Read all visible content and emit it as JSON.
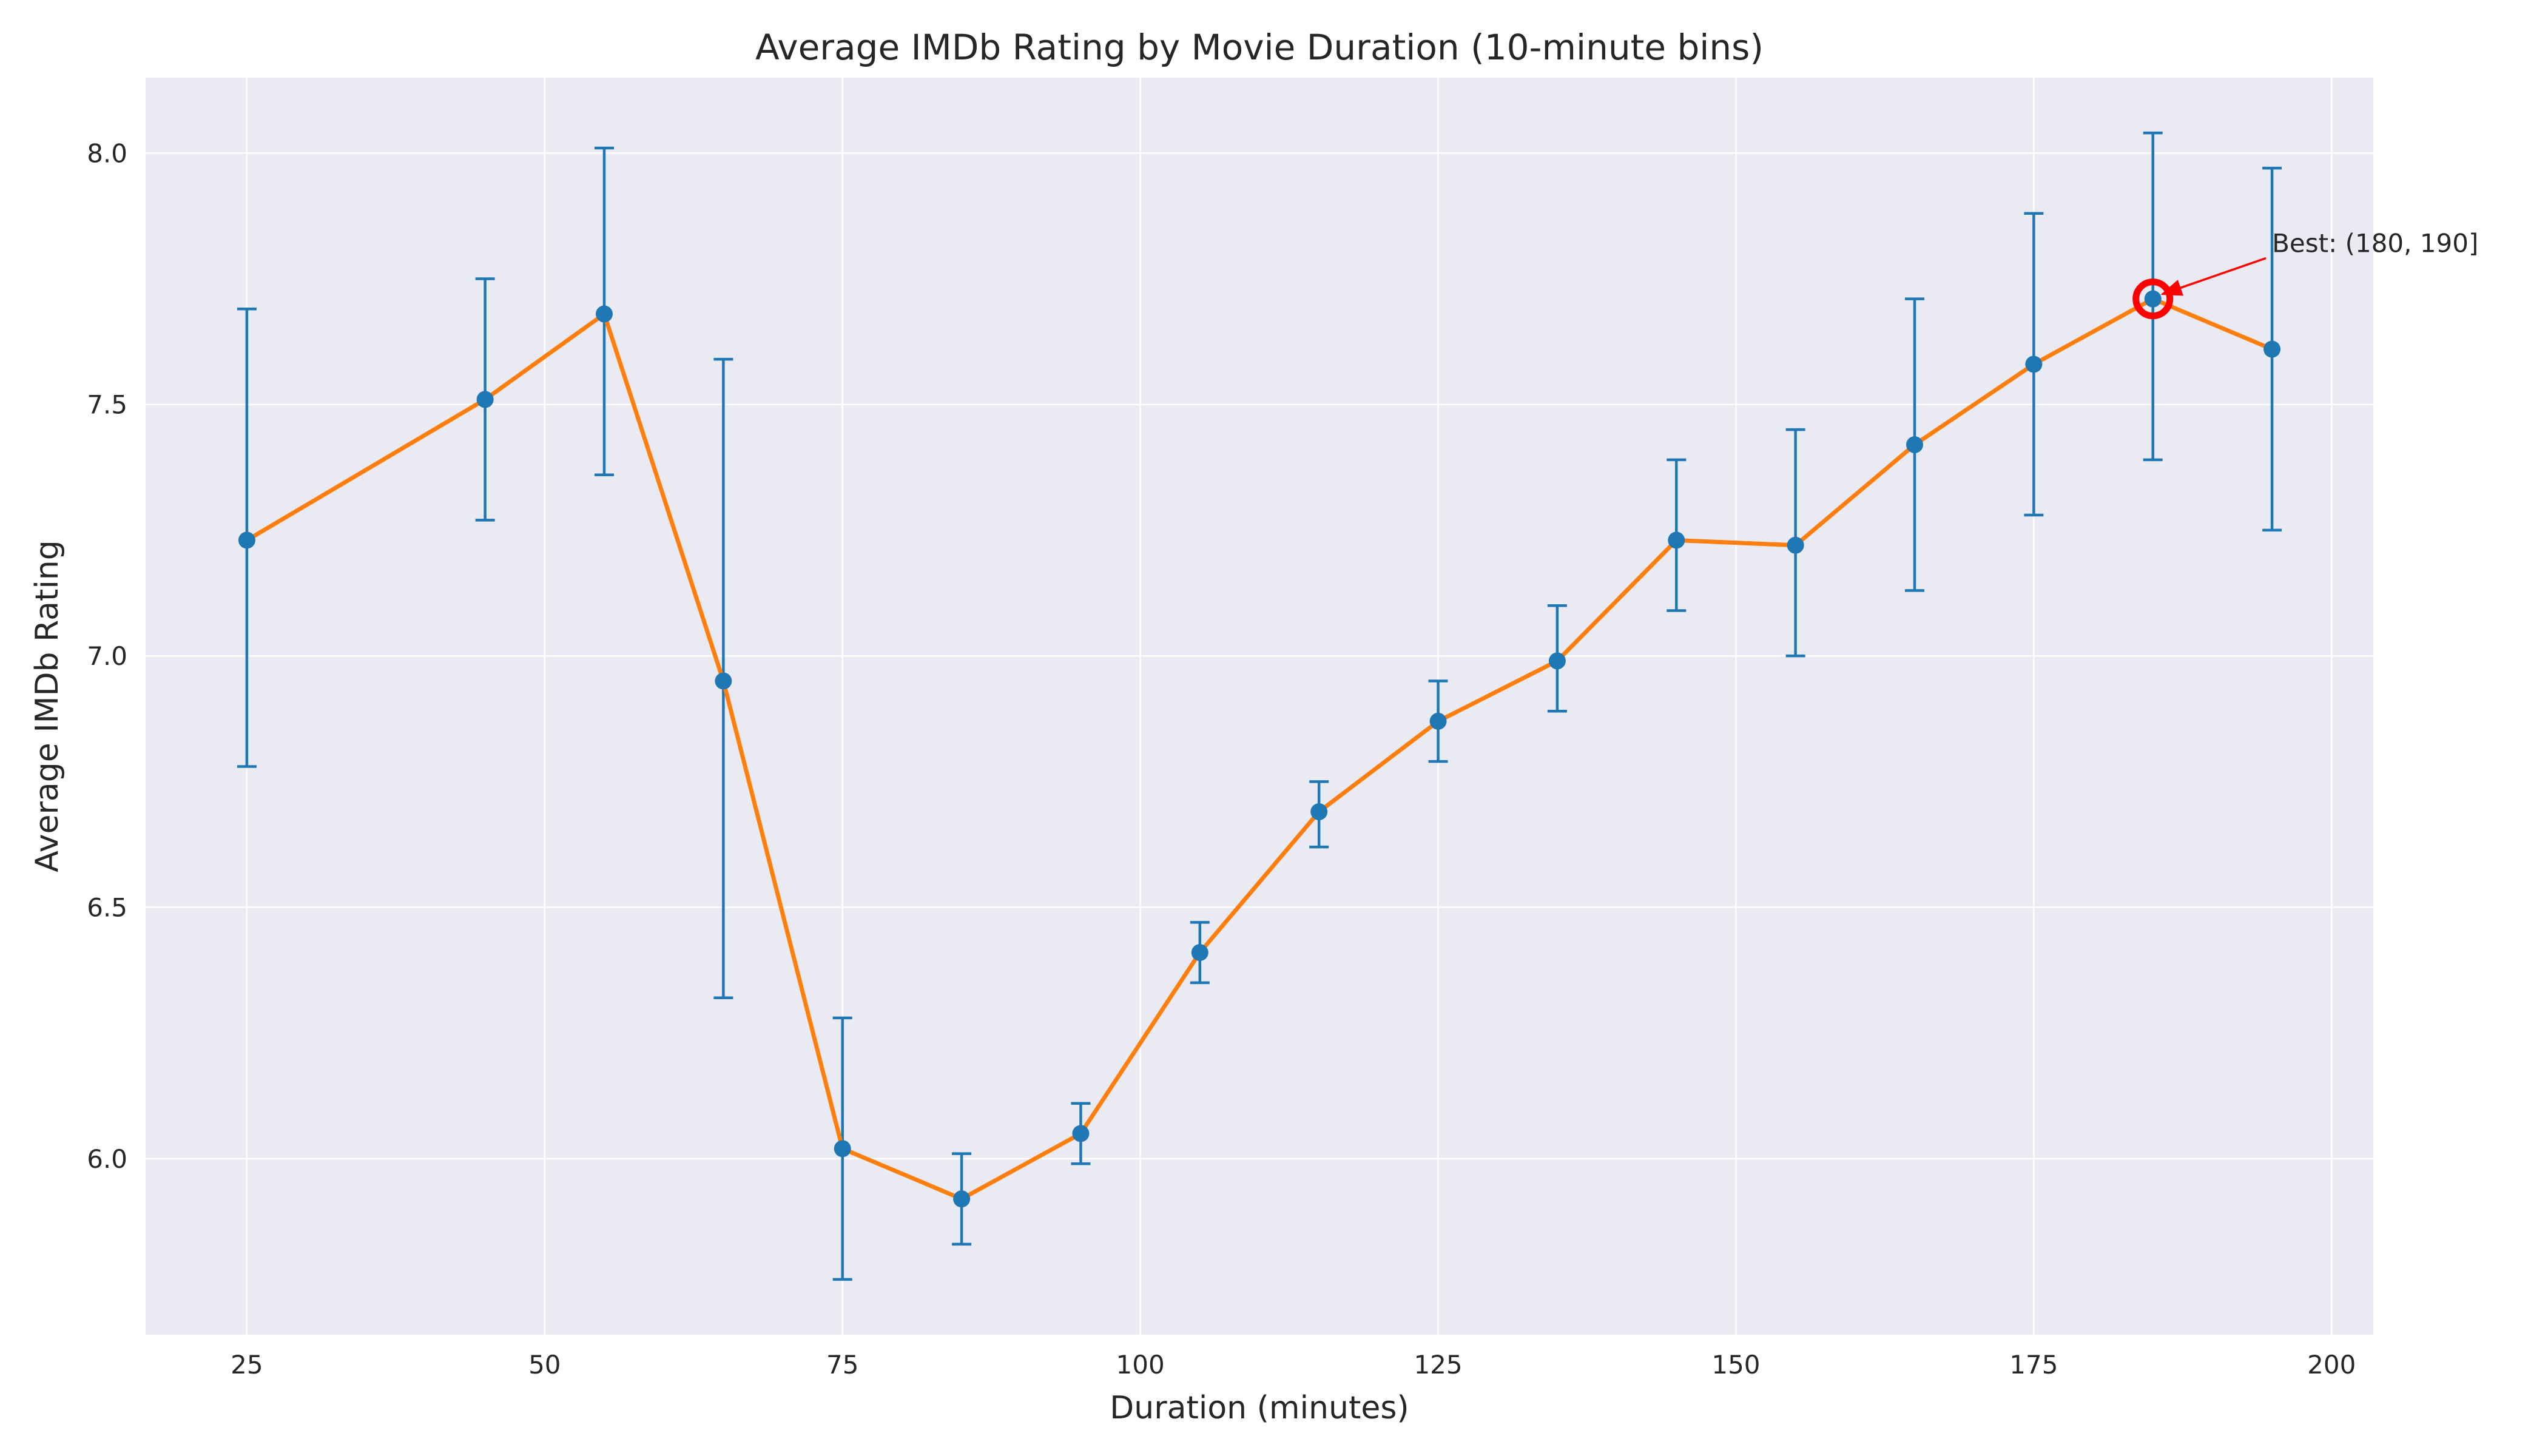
{
  "chart_data": {
    "type": "line",
    "title": "Average IMDb Rating by Movie Duration (10-minute bins)",
    "xlabel": "Duration (minutes)",
    "ylabel": "Average IMDb Rating",
    "xlim": [
      16.5,
      203.5
    ],
    "ylim": [
      5.65,
      8.15
    ],
    "xticks": [
      25,
      50,
      75,
      100,
      125,
      150,
      175,
      200
    ],
    "yticks": [
      6.0,
      6.5,
      7.0,
      7.5,
      8.0
    ],
    "xtick_labels": [
      "25",
      "50",
      "75",
      "100",
      "125",
      "150",
      "175",
      "200"
    ],
    "ytick_labels": [
      "6.0",
      "6.5",
      "7.0",
      "7.5",
      "8.0"
    ],
    "grid": true,
    "series": [
      {
        "x": [
          25,
          45,
          55,
          65,
          75,
          85,
          95,
          105,
          115,
          125,
          135,
          145,
          155,
          165,
          175,
          185,
          195
        ],
        "y": [
          7.23,
          7.51,
          7.68,
          6.95,
          6.02,
          5.92,
          6.05,
          6.41,
          6.69,
          6.87,
          6.99,
          7.23,
          7.22,
          7.42,
          7.58,
          7.71,
          7.61
        ],
        "err_low": [
          6.78,
          7.27,
          7.36,
          6.32,
          5.76,
          5.83,
          5.99,
          6.35,
          6.62,
          6.79,
          6.89,
          7.09,
          7.0,
          7.13,
          7.28,
          7.39,
          7.25
        ],
        "err_high": [
          7.69,
          7.75,
          8.01,
          7.59,
          6.28,
          6.01,
          6.11,
          6.47,
          6.75,
          6.95,
          7.1,
          7.39,
          7.45,
          7.71,
          7.88,
          8.04,
          7.97
        ]
      }
    ],
    "annotation": {
      "text": "Best: (180, 190]",
      "x": 185,
      "y": 7.71,
      "text_x": 195,
      "text_y": 7.82
    },
    "colors": {
      "background": "#eaeaf2",
      "grid": "#ffffff",
      "line": "#ff7f0e",
      "markers": "#1f77b4",
      "errorbars": "#1f77b4",
      "highlight": "#ff0000",
      "arrow": "#ff0000"
    }
  }
}
